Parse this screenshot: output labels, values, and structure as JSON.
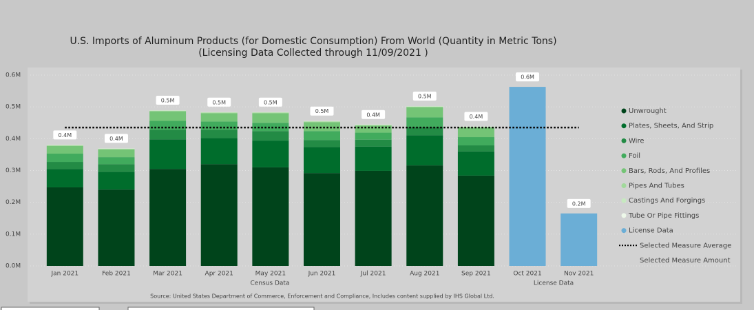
{
  "chart_data": {
    "type": "stacked-bar",
    "title": "U.S. Imports of Aluminum Products (for Domestic Consumption) From World  (Quantity in Metric Tons)",
    "subtitle": "(Licensing Data Collected through 11/09/2021 )",
    "categories": [
      "Jan 2021",
      "Feb 2021",
      "Mar 2021",
      "Apr 2021",
      "May 2021",
      "Jun 2021",
      "Jul 2021",
      "Aug 2021",
      "Sep 2021",
      "Oct 2021",
      "Nov 2021"
    ],
    "group_labels": [
      "Census Data",
      "License Data"
    ],
    "source": "Source: United States Department of Commerce, Enforcement and Compliance, Includes content supplied by IHS Global Ltd.",
    "series": [
      {
        "name": "Unwrought",
        "color": "#00441b",
        "values": [
          247000,
          240000,
          305000,
          320000,
          310000,
          292000,
          299000,
          316000,
          284000,
          null,
          null
        ]
      },
      {
        "name": "Plates, Sheets, And Strip",
        "color": "#006d2c",
        "values": [
          58000,
          56000,
          93000,
          82000,
          84000,
          82000,
          76000,
          95000,
          76000,
          null,
          null
        ]
      },
      {
        "name": "Wire",
        "color": "#238b45",
        "values": [
          22000,
          24000,
          30000,
          26000,
          30000,
          22000,
          22000,
          26000,
          19000,
          null,
          null
        ]
      },
      {
        "name": "Foil",
        "color": "#41ab5d",
        "values": [
          26000,
          22000,
          28000,
          26000,
          26000,
          28000,
          22000,
          30000,
          26000,
          null,
          null
        ]
      },
      {
        "name": "Bars, Rods, And Profiles",
        "color": "#74c476",
        "values": [
          24000,
          24000,
          30000,
          26000,
          30000,
          28000,
          22000,
          32000,
          30000,
          null,
          null
        ]
      },
      {
        "name": "Pipes And Tubes",
        "color": "#a1d99b",
        "values": [
          2000,
          2000,
          2000,
          2000,
          2000,
          2000,
          2000,
          2000,
          2000,
          null,
          null
        ]
      },
      {
        "name": "Castings And Forgings",
        "color": "#c7e9c0",
        "values": [
          1000,
          1000,
          1000,
          1000,
          1000,
          1000,
          1000,
          1000,
          1000,
          null,
          null
        ]
      },
      {
        "name": "Tube Or Pipe Fittings",
        "color": "#edf8e9",
        "values": [
          500,
          500,
          500,
          500,
          500,
          500,
          500,
          500,
          500,
          null,
          null
        ]
      },
      {
        "name": "License Data",
        "color": "#6baed6",
        "values": [
          null,
          null,
          null,
          null,
          null,
          null,
          null,
          null,
          null,
          563000,
          165000
        ]
      }
    ],
    "total_labels": [
      "0.4M",
      "0.4M",
      "0.5M",
      "0.5M",
      "0.5M",
      "0.5M",
      "0.4M",
      "0.5M",
      "0.4M",
      "0.6M",
      "0.2M"
    ],
    "average": {
      "name": "Selected Measure Average",
      "value": 435000,
      "color": "#000000"
    },
    "amount_label": "Selected Measure Amount",
    "ylim": [
      0,
      600000
    ],
    "yticks": [
      {
        "value": 0,
        "label": "0.0M"
      },
      {
        "value": 100000,
        "label": "0.1M"
      },
      {
        "value": 200000,
        "label": "0.2M"
      },
      {
        "value": 300000,
        "label": "0.3M"
      },
      {
        "value": 400000,
        "label": "0.4M"
      },
      {
        "value": 500000,
        "label": "0.5M"
      },
      {
        "value": 600000,
        "label": "0.6M"
      }
    ],
    "grid": true
  }
}
